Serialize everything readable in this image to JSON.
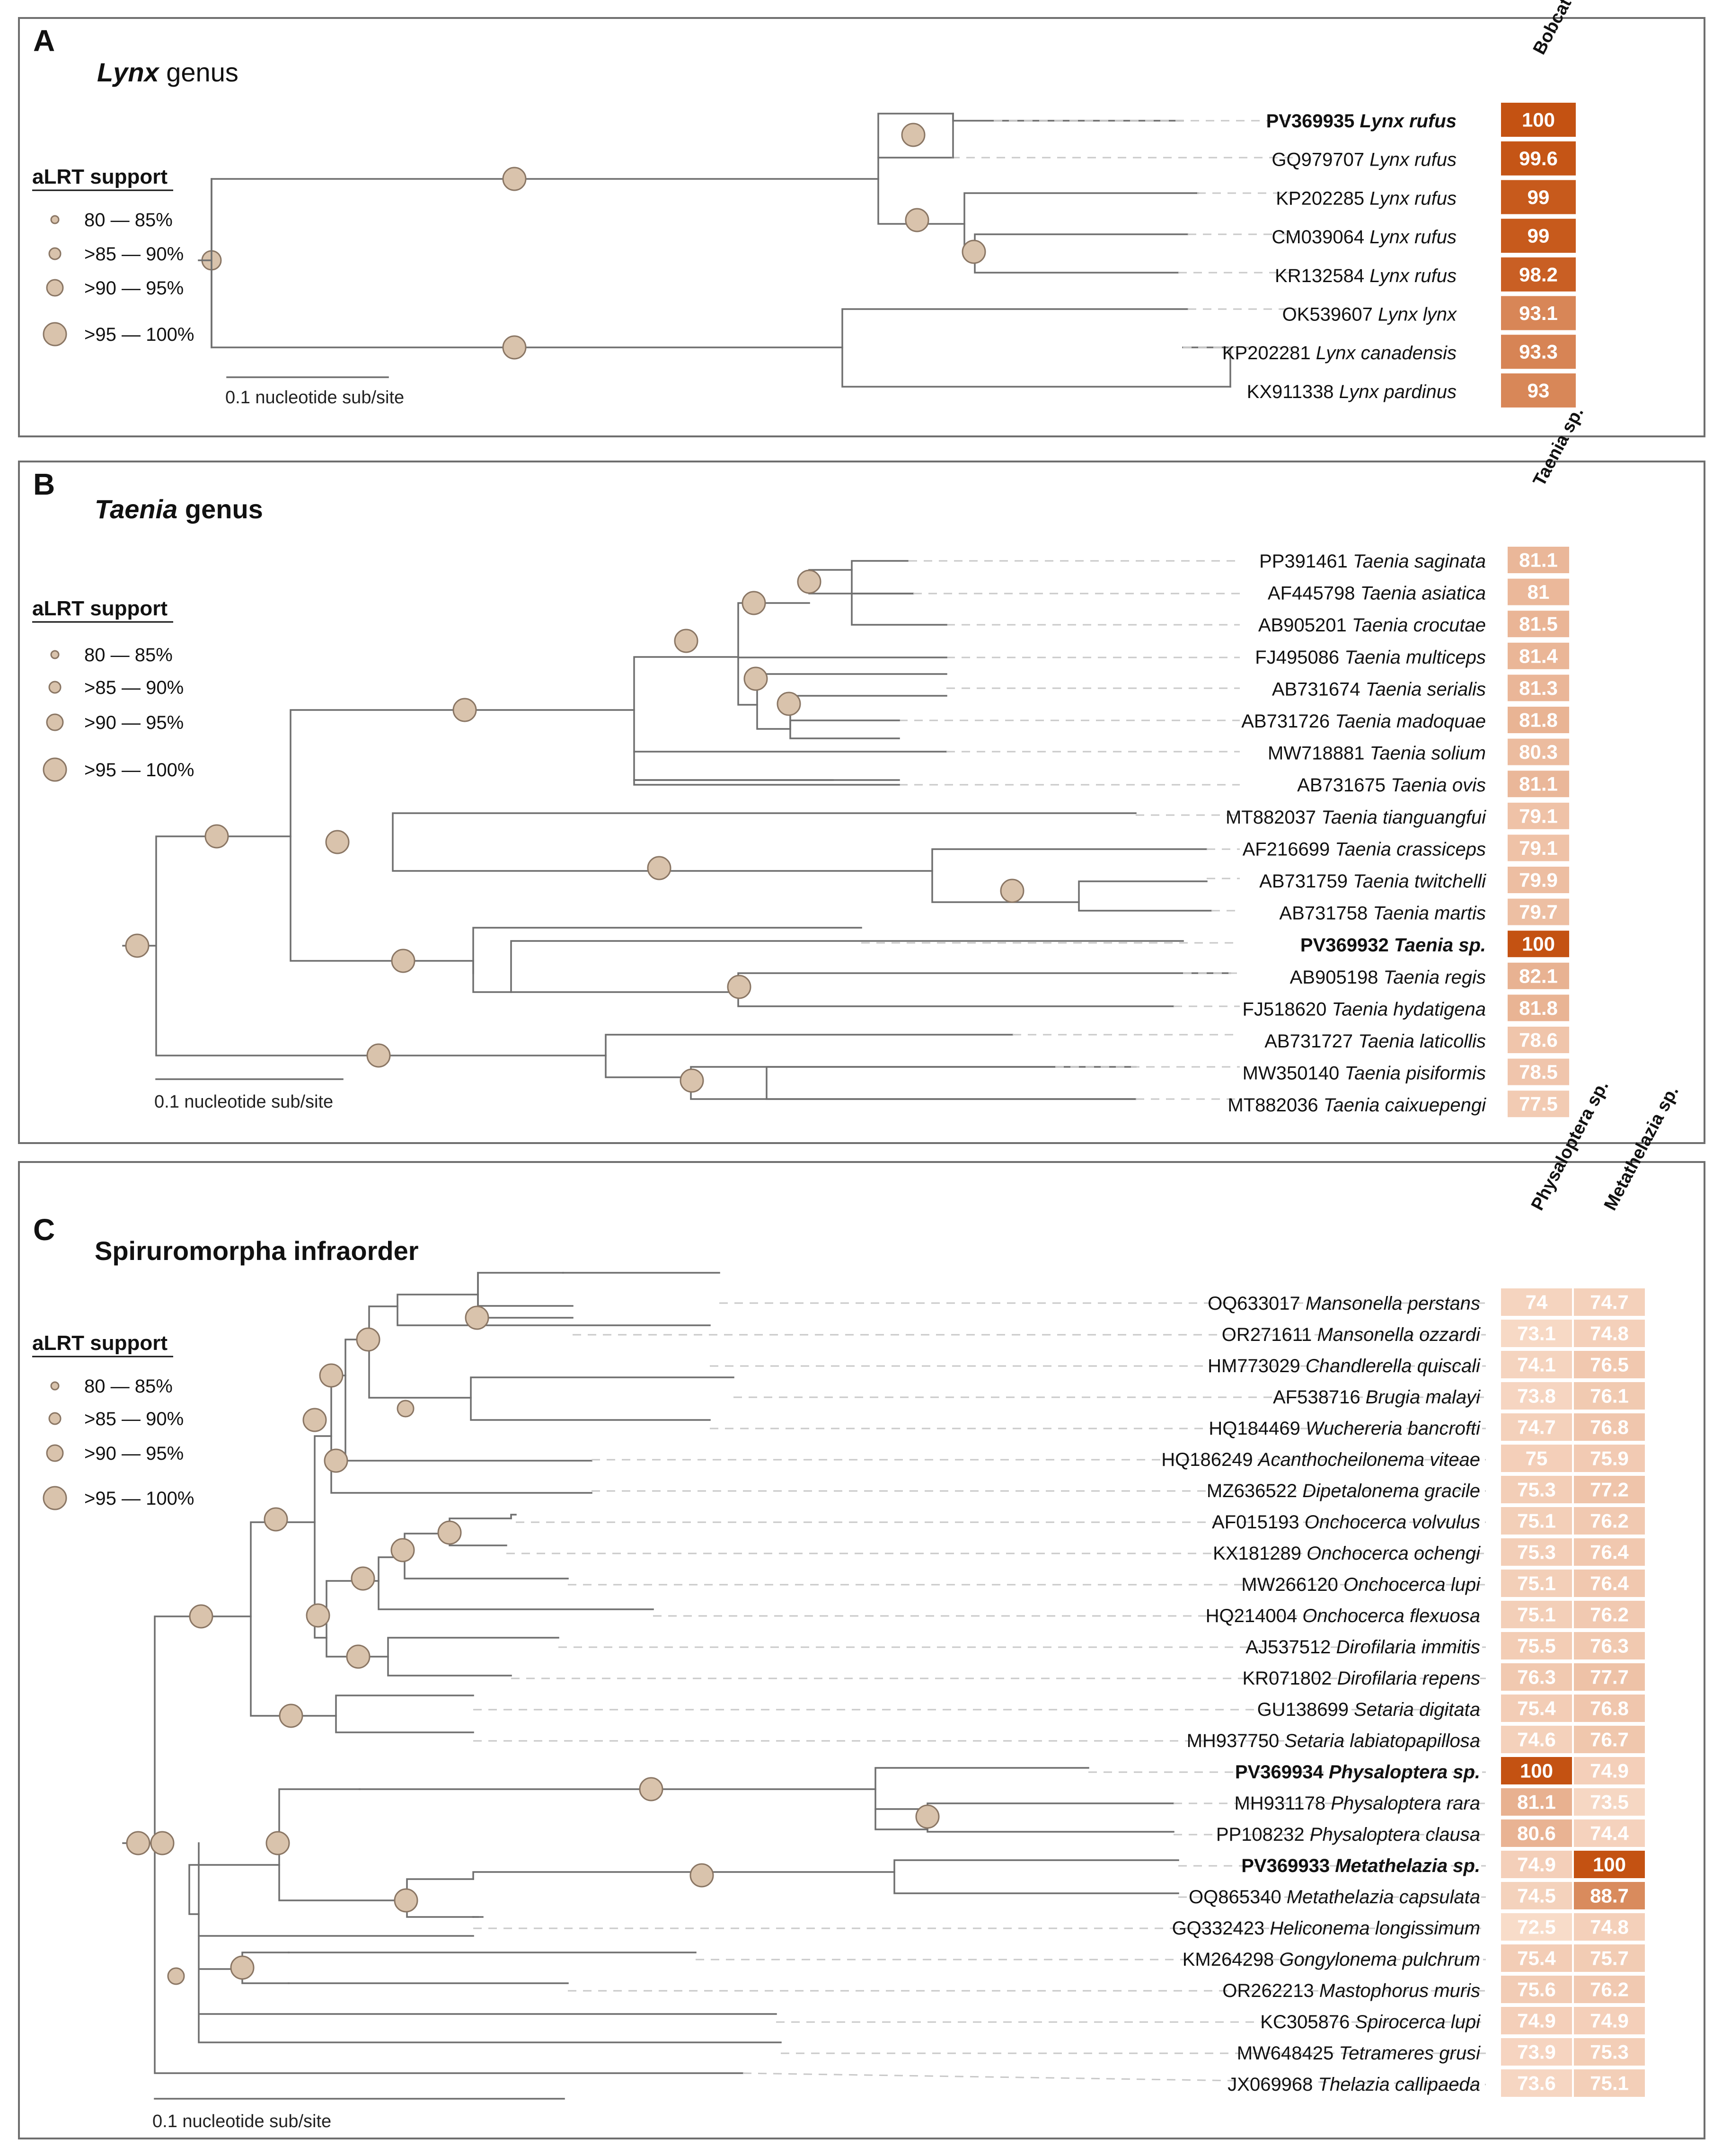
{
  "panels": [
    {
      "letter": "A",
      "title_italic": "Lynx",
      "title_rest": " genus",
      "heatmap_columns": [
        "Bobcat"
      ],
      "legend": {
        "title": "aLRT support",
        "items": [
          "80 — 85%",
          ">85 — 90%",
          ">90  — 95%",
          ">95 — 100%"
        ]
      },
      "scale_label": "0.1 nucleotide sub/site",
      "taxa": [
        {
          "acc": "PV369935",
          "name": "Lynx rufus",
          "bold": true,
          "values": [
            100
          ]
        },
        {
          "acc": "GQ979707",
          "name": "Lynx rufus",
          "bold": false,
          "values": [
            99.6
          ]
        },
        {
          "acc": "KP202285",
          "name": "Lynx rufus",
          "bold": false,
          "values": [
            99
          ]
        },
        {
          "acc": "CM039064",
          "name": "Lynx rufus",
          "bold": false,
          "values": [
            99
          ]
        },
        {
          "acc": "KR132584",
          "name": "Lynx rufus",
          "bold": false,
          "values": [
            98.2
          ]
        },
        {
          "acc": "OK539607",
          "name": "Lynx lynx",
          "bold": false,
          "values": [
            93.1
          ]
        },
        {
          "acc": "KP202281",
          "name": "Lynx canadensis",
          "bold": false,
          "values": [
            93.3
          ]
        },
        {
          "acc": "KX911338",
          "name": "Lynx pardinus",
          "bold": false,
          "values": [
            93
          ]
        }
      ]
    },
    {
      "letter": "B",
      "title_italic": "Taenia",
      "title_rest": " genus",
      "heatmap_columns": [
        "Taenia sp."
      ],
      "legend": {
        "title": "aLRT support",
        "items": [
          "80 — 85%",
          ">85 — 90%",
          ">90 — 95%",
          ">95 — 100%"
        ]
      },
      "scale_label": "0.1 nucleotide sub/site",
      "taxa": [
        {
          "acc": "PP391461",
          "name": "Taenia saginata",
          "bold": false,
          "values": [
            81.1
          ]
        },
        {
          "acc": "AF445798",
          "name": "Taenia asiatica",
          "bold": false,
          "values": [
            81
          ]
        },
        {
          "acc": "AB905201",
          "name": "Taenia crocutae",
          "bold": false,
          "values": [
            81.5
          ]
        },
        {
          "acc": "FJ495086",
          "name": "Taenia multiceps",
          "bold": false,
          "values": [
            81.4
          ]
        },
        {
          "acc": "AB731674",
          "name": "Taenia serialis",
          "bold": false,
          "values": [
            81.3
          ]
        },
        {
          "acc": "AB731726",
          "name": "Taenia madoquae",
          "bold": false,
          "values": [
            81.8
          ]
        },
        {
          "acc": "MW718881",
          "name": "Taenia solium",
          "bold": false,
          "values": [
            80.3
          ]
        },
        {
          "acc": "AB731675",
          "name": "Taenia ovis",
          "bold": false,
          "values": [
            81.1
          ]
        },
        {
          "acc": "MT882037",
          "name": "Taenia tianguangfui",
          "bold": false,
          "values": [
            79.1
          ]
        },
        {
          "acc": "AF216699",
          "name": "Taenia crassiceps",
          "bold": false,
          "values": [
            79.1
          ]
        },
        {
          "acc": "AB731759",
          "name": "Taenia twitchelli",
          "bold": false,
          "values": [
            79.9
          ]
        },
        {
          "acc": "AB731758",
          "name": "Taenia martis",
          "bold": false,
          "values": [
            79.7
          ]
        },
        {
          "acc": "PV369932",
          "name": "Taenia sp.",
          "bold": true,
          "values": [
            100
          ]
        },
        {
          "acc": "AB905198",
          "name": "Taenia regis",
          "bold": false,
          "values": [
            82.1
          ]
        },
        {
          "acc": "FJ518620",
          "name": "Taenia hydatigena",
          "bold": false,
          "values": [
            81.8
          ]
        },
        {
          "acc": "AB731727",
          "name": "Taenia laticollis",
          "bold": false,
          "values": [
            78.6
          ]
        },
        {
          "acc": "MW350140",
          "name": "Taenia pisiformis",
          "bold": false,
          "values": [
            78.5
          ]
        },
        {
          "acc": "MT882036",
          "name": "Taenia caixuepengi",
          "bold": false,
          "values": [
            77.5
          ]
        }
      ]
    },
    {
      "letter": "C",
      "title_italic": "",
      "title_rest": "Spiruromorpha infraorder",
      "heatmap_columns": [
        "Physaloptera sp.",
        "Metathelazia sp."
      ],
      "legend": {
        "title": "aLRT support",
        "items": [
          "80 — 85%",
          ">85 — 90%",
          ">90 — 95%",
          ">95 — 100%"
        ]
      },
      "scale_label": "0.1 nucleotide sub/site",
      "taxa": [
        {
          "acc": "OQ633017",
          "name": "Mansonella perstans",
          "bold": false,
          "values": [
            74,
            74.7
          ]
        },
        {
          "acc": "OR271611",
          "name": "Mansonella ozzardi",
          "bold": false,
          "values": [
            73.1,
            74.8
          ]
        },
        {
          "acc": "HM773029",
          "name": "Chandlerella quiscali",
          "bold": false,
          "values": [
            74.1,
            76.5
          ]
        },
        {
          "acc": "AF538716",
          "name": "Brugia malayi",
          "bold": false,
          "values": [
            73.8,
            76.1
          ]
        },
        {
          "acc": "HQ184469",
          "name": "Wuchereria bancrofti",
          "bold": false,
          "values": [
            74.7,
            76.8
          ]
        },
        {
          "acc": "HQ186249",
          "name": "Acanthocheilonema viteae",
          "bold": false,
          "values": [
            75,
            75.9
          ]
        },
        {
          "acc": "MZ636522",
          "name": "Dipetalonema gracile",
          "bold": false,
          "values": [
            75.3,
            77.2
          ]
        },
        {
          "acc": "AF015193",
          "name": "Onchocerca volvulus",
          "bold": false,
          "values": [
            75.1,
            76.2
          ]
        },
        {
          "acc": "KX181289",
          "name": "Onchocerca ochengi",
          "bold": false,
          "values": [
            75.3,
            76.4
          ]
        },
        {
          "acc": "MW266120",
          "name": "Onchocerca lupi",
          "bold": false,
          "values": [
            75.1,
            76.4
          ]
        },
        {
          "acc": "HQ214004",
          "name": "Onchocerca flexuosa",
          "bold": false,
          "values": [
            75.1,
            76.2
          ]
        },
        {
          "acc": "AJ537512",
          "name": "Dirofilaria immitis",
          "bold": false,
          "values": [
            75.5,
            76.3
          ]
        },
        {
          "acc": "KR071802",
          "name": "Dirofilaria repens",
          "bold": false,
          "values": [
            76.3,
            77.7
          ]
        },
        {
          "acc": "GU138699",
          "name": "Setaria digitata",
          "bold": false,
          "values": [
            75.4,
            76.8
          ]
        },
        {
          "acc": "MH937750",
          "name": "Setaria labiatopapillosa",
          "bold": false,
          "values": [
            74.6,
            76.7
          ]
        },
        {
          "acc": "PV369934",
          "name": "Physaloptera sp.",
          "bold": true,
          "values": [
            100,
            74.9
          ]
        },
        {
          "acc": "MH931178",
          "name": "Physaloptera rara",
          "bold": false,
          "values": [
            81.1,
            73.5
          ]
        },
        {
          "acc": "PP108232",
          "name": "Physaloptera clausa",
          "bold": false,
          "values": [
            80.6,
            74.4
          ]
        },
        {
          "acc": "PV369933",
          "name": "Metathelazia sp.",
          "bold": true,
          "values": [
            74.9,
            100
          ]
        },
        {
          "acc": "OQ865340",
          "name": "Metathelazia capsulata",
          "bold": false,
          "values": [
            74.5,
            88.7
          ]
        },
        {
          "acc": "GQ332423",
          "name": "Heliconema longissimum",
          "bold": false,
          "values": [
            72.5,
            74.8
          ]
        },
        {
          "acc": "KM264298",
          "name": "Gongylonema pulchrum",
          "bold": false,
          "values": [
            75.4,
            75.7
          ]
        },
        {
          "acc": "OR262213",
          "name": "Mastophorus muris",
          "bold": false,
          "values": [
            75.6,
            76.2
          ]
        },
        {
          "acc": "KC305876",
          "name": "Spirocerca lupi",
          "bold": false,
          "values": [
            74.9,
            74.9
          ]
        },
        {
          "acc": "MW648425",
          "name": "Tetrameres grusi",
          "bold": false,
          "values": [
            73.9,
            75.3
          ]
        },
        {
          "acc": "JX069968",
          "name": "Thelazia callipaeda",
          "bold": false,
          "values": [
            73.6,
            75.1
          ]
        }
      ]
    }
  ]
}
